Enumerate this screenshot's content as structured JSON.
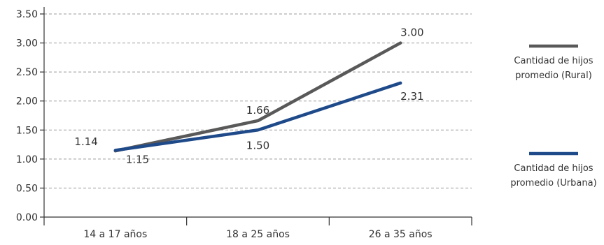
{
  "chart_data": {
    "type": "line",
    "categories": [
      "14 a 17 años",
      "18 a 25 años",
      "26 a 35 años"
    ],
    "ylim": [
      0,
      3.5
    ],
    "yticks": [
      "0.00",
      "0.50",
      "1.00",
      "1.50",
      "2.00",
      "2.50",
      "3.00",
      "3.50"
    ],
    "grid": true,
    "legend_position": "right",
    "series": [
      {
        "name": "Cantidad de hijos promedio (Rural)",
        "legend_lines": [
          "Cantidad de hijos",
          "promedio (Rural)"
        ],
        "color": "#595959",
        "values": [
          1.14,
          1.66,
          3.0
        ],
        "labels": [
          "1.14",
          "1.66",
          "3.00"
        ]
      },
      {
        "name": "Cantidad de hijos promedio (Urbana)",
        "legend_lines": [
          "Cantidad de hijos",
          "promedio (Urbana)"
        ],
        "color": "#1f4a8a",
        "values": [
          1.15,
          1.5,
          2.31
        ],
        "labels": [
          "1.15",
          "1.50",
          "2.31"
        ]
      }
    ]
  }
}
